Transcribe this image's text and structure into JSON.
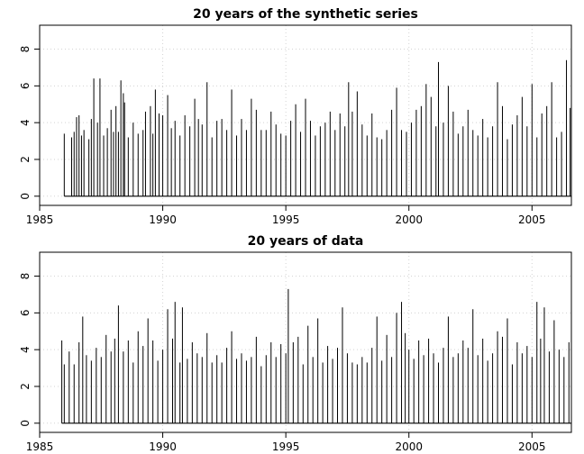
{
  "chart_data": [
    {
      "type": "bar",
      "title": "20 years of the synthetic series",
      "xlabel": "",
      "ylabel": "",
      "xlim": [
        1985,
        2006.6
      ],
      "ylim": [
        -0.5,
        9.3
      ],
      "x_ticks": [
        1985,
        1990,
        1995,
        2000,
        2005
      ],
      "y_ticks": [
        0,
        2,
        4,
        6,
        8
      ],
      "grid": true,
      "series": [
        {
          "values": [
            [
              1986.0,
              3.4
            ],
            [
              1986.3,
              3.2
            ],
            [
              1986.4,
              3.5
            ],
            [
              1986.5,
              4.3
            ],
            [
              1986.6,
              4.4
            ],
            [
              1986.7,
              3.3
            ],
            [
              1986.8,
              3.6
            ],
            [
              1987.0,
              3.1
            ],
            [
              1987.1,
              4.2
            ],
            [
              1987.2,
              6.4
            ],
            [
              1987.35,
              4.0
            ],
            [
              1987.45,
              6.4
            ],
            [
              1987.6,
              3.3
            ],
            [
              1987.75,
              3.7
            ],
            [
              1987.9,
              4.7
            ],
            [
              1988.0,
              3.5
            ],
            [
              1988.1,
              4.9
            ],
            [
              1988.2,
              3.5
            ],
            [
              1988.3,
              6.3
            ],
            [
              1988.4,
              5.6
            ],
            [
              1988.45,
              5.1
            ],
            [
              1988.6,
              3.2
            ],
            [
              1988.8,
              4.0
            ],
            [
              1989.0,
              3.4
            ],
            [
              1989.2,
              3.6
            ],
            [
              1989.3,
              4.6
            ],
            [
              1989.5,
              4.9
            ],
            [
              1989.6,
              3.4
            ],
            [
              1989.7,
              5.8
            ],
            [
              1989.85,
              4.5
            ],
            [
              1990.0,
              4.4
            ],
            [
              1990.2,
              5.5
            ],
            [
              1990.35,
              3.7
            ],
            [
              1990.5,
              4.1
            ],
            [
              1990.7,
              3.3
            ],
            [
              1990.9,
              4.4
            ],
            [
              1991.1,
              3.8
            ],
            [
              1991.3,
              5.3
            ],
            [
              1991.45,
              4.2
            ],
            [
              1991.6,
              3.9
            ],
            [
              1991.8,
              6.2
            ],
            [
              1992.0,
              3.2
            ],
            [
              1992.2,
              4.1
            ],
            [
              1992.4,
              4.2
            ],
            [
              1992.6,
              3.6
            ],
            [
              1992.8,
              5.8
            ],
            [
              1993.0,
              3.3
            ],
            [
              1993.2,
              4.2
            ],
            [
              1993.4,
              3.6
            ],
            [
              1993.6,
              5.3
            ],
            [
              1993.8,
              4.7
            ],
            [
              1994.0,
              3.6
            ],
            [
              1994.2,
              3.6
            ],
            [
              1994.4,
              4.6
            ],
            [
              1994.6,
              3.9
            ],
            [
              1994.8,
              3.4
            ],
            [
              1995.0,
              3.3
            ],
            [
              1995.2,
              4.1
            ],
            [
              1995.4,
              5.0
            ],
            [
              1995.6,
              3.5
            ],
            [
              1995.8,
              5.3
            ],
            [
              1996.0,
              4.1
            ],
            [
              1996.2,
              3.3
            ],
            [
              1996.4,
              3.8
            ],
            [
              1996.6,
              4.0
            ],
            [
              1996.8,
              4.6
            ],
            [
              1997.0,
              3.6
            ],
            [
              1997.2,
              4.5
            ],
            [
              1997.4,
              3.8
            ],
            [
              1997.55,
              6.2
            ],
            [
              1997.7,
              4.6
            ],
            [
              1997.9,
              5.7
            ],
            [
              1998.1,
              3.9
            ],
            [
              1998.3,
              3.3
            ],
            [
              1998.5,
              4.5
            ],
            [
              1998.7,
              3.2
            ],
            [
              1998.9,
              3.1
            ],
            [
              1999.1,
              3.6
            ],
            [
              1999.3,
              4.7
            ],
            [
              1999.5,
              5.9
            ],
            [
              1999.7,
              3.6
            ],
            [
              1999.9,
              3.5
            ],
            [
              2000.1,
              4.0
            ],
            [
              2000.3,
              4.7
            ],
            [
              2000.5,
              4.9
            ],
            [
              2000.7,
              6.1
            ],
            [
              2000.9,
              5.4
            ],
            [
              2001.1,
              3.8
            ],
            [
              2001.2,
              7.3
            ],
            [
              2001.4,
              4.0
            ],
            [
              2001.6,
              6.0
            ],
            [
              2001.8,
              4.6
            ],
            [
              2002.0,
              3.4
            ],
            [
              2002.2,
              3.8
            ],
            [
              2002.4,
              4.7
            ],
            [
              2002.6,
              3.6
            ],
            [
              2002.8,
              3.3
            ],
            [
              2003.0,
              4.2
            ],
            [
              2003.2,
              3.2
            ],
            [
              2003.4,
              3.8
            ],
            [
              2003.6,
              6.2
            ],
            [
              2003.8,
              4.9
            ],
            [
              2004.0,
              3.1
            ],
            [
              2004.2,
              3.9
            ],
            [
              2004.4,
              4.4
            ],
            [
              2004.6,
              5.4
            ],
            [
              2004.8,
              3.8
            ],
            [
              2005.0,
              6.1
            ],
            [
              2005.2,
              3.2
            ],
            [
              2005.4,
              4.5
            ],
            [
              2005.6,
              4.9
            ],
            [
              2005.8,
              6.2
            ],
            [
              2006.0,
              3.2
            ],
            [
              2006.2,
              3.5
            ],
            [
              2006.4,
              7.4
            ],
            [
              2006.55,
              4.8
            ]
          ]
        }
      ]
    },
    {
      "type": "bar",
      "title": "20 years of data",
      "xlabel": "",
      "ylabel": "",
      "xlim": [
        1985,
        2006.6
      ],
      "ylim": [
        -0.5,
        9.3
      ],
      "x_ticks": [
        1985,
        1990,
        1995,
        2000,
        2005
      ],
      "y_ticks": [
        0,
        2,
        4,
        6,
        8
      ],
      "grid": true,
      "series": [
        {
          "values": [
            [
              1985.9,
              4.5
            ],
            [
              1986.0,
              3.2
            ],
            [
              1986.2,
              3.9
            ],
            [
              1986.4,
              3.2
            ],
            [
              1986.6,
              4.4
            ],
            [
              1986.75,
              5.8
            ],
            [
              1986.9,
              3.7
            ],
            [
              1987.1,
              3.4
            ],
            [
              1987.3,
              4.1
            ],
            [
              1987.5,
              3.6
            ],
            [
              1987.7,
              4.8
            ],
            [
              1987.9,
              3.9
            ],
            [
              1988.05,
              4.6
            ],
            [
              1988.2,
              6.4
            ],
            [
              1988.4,
              3.9
            ],
            [
              1988.6,
              4.5
            ],
            [
              1988.8,
              3.3
            ],
            [
              1989.0,
              5.0
            ],
            [
              1989.2,
              4.2
            ],
            [
              1989.4,
              5.7
            ],
            [
              1989.6,
              4.5
            ],
            [
              1989.8,
              3.4
            ],
            [
              1990.0,
              4.0
            ],
            [
              1990.2,
              6.2
            ],
            [
              1990.4,
              4.6
            ],
            [
              1990.5,
              6.6
            ],
            [
              1990.7,
              3.3
            ],
            [
              1990.8,
              6.3
            ],
            [
              1991.0,
              3.5
            ],
            [
              1991.2,
              4.4
            ],
            [
              1991.4,
              3.8
            ],
            [
              1991.6,
              3.6
            ],
            [
              1991.8,
              4.9
            ],
            [
              1992.0,
              3.3
            ],
            [
              1992.2,
              3.7
            ],
            [
              1992.4,
              3.3
            ],
            [
              1992.6,
              4.1
            ],
            [
              1992.8,
              5.0
            ],
            [
              1993.0,
              3.5
            ],
            [
              1993.2,
              3.8
            ],
            [
              1993.4,
              3.4
            ],
            [
              1993.6,
              3.6
            ],
            [
              1993.8,
              4.7
            ],
            [
              1994.0,
              3.1
            ],
            [
              1994.2,
              3.7
            ],
            [
              1994.4,
              4.4
            ],
            [
              1994.6,
              3.6
            ],
            [
              1994.8,
              4.3
            ],
            [
              1995.0,
              3.8
            ],
            [
              1995.1,
              7.3
            ],
            [
              1995.3,
              4.4
            ],
            [
              1995.5,
              4.7
            ],
            [
              1995.7,
              3.2
            ],
            [
              1995.9,
              5.3
            ],
            [
              1996.1,
              3.6
            ],
            [
              1996.3,
              5.7
            ],
            [
              1996.5,
              3.3
            ],
            [
              1996.7,
              4.2
            ],
            [
              1996.9,
              3.5
            ],
            [
              1997.1,
              4.1
            ],
            [
              1997.3,
              6.3
            ],
            [
              1997.5,
              3.8
            ],
            [
              1997.7,
              3.3
            ],
            [
              1997.9,
              3.2
            ],
            [
              1998.1,
              3.6
            ],
            [
              1998.3,
              3.3
            ],
            [
              1998.5,
              4.1
            ],
            [
              1998.7,
              5.8
            ],
            [
              1998.9,
              3.4
            ],
            [
              1999.1,
              4.8
            ],
            [
              1999.3,
              3.6
            ],
            [
              1999.5,
              6.0
            ],
            [
              1999.7,
              6.6
            ],
            [
              1999.85,
              4.9
            ],
            [
              2000.0,
              4.0
            ],
            [
              2000.2,
              3.5
            ],
            [
              2000.4,
              4.5
            ],
            [
              2000.6,
              3.7
            ],
            [
              2000.8,
              4.6
            ],
            [
              2001.0,
              3.8
            ],
            [
              2001.2,
              3.3
            ],
            [
              2001.4,
              4.1
            ],
            [
              2001.6,
              5.8
            ],
            [
              2001.8,
              3.6
            ],
            [
              2002.0,
              3.8
            ],
            [
              2002.2,
              4.5
            ],
            [
              2002.4,
              4.1
            ],
            [
              2002.6,
              6.2
            ],
            [
              2002.8,
              3.7
            ],
            [
              2003.0,
              4.6
            ],
            [
              2003.2,
              3.4
            ],
            [
              2003.4,
              3.8
            ],
            [
              2003.6,
              5.0
            ],
            [
              2003.8,
              4.7
            ],
            [
              2004.0,
              5.7
            ],
            [
              2004.2,
              3.2
            ],
            [
              2004.4,
              4.4
            ],
            [
              2004.6,
              3.8
            ],
            [
              2004.8,
              4.2
            ],
            [
              2005.0,
              3.6
            ],
            [
              2005.2,
              6.6
            ],
            [
              2005.35,
              4.6
            ],
            [
              2005.5,
              6.3
            ],
            [
              2005.7,
              3.9
            ],
            [
              2005.9,
              5.6
            ],
            [
              2006.1,
              4.0
            ],
            [
              2006.3,
              3.6
            ],
            [
              2006.5,
              4.4
            ]
          ]
        }
      ]
    }
  ]
}
